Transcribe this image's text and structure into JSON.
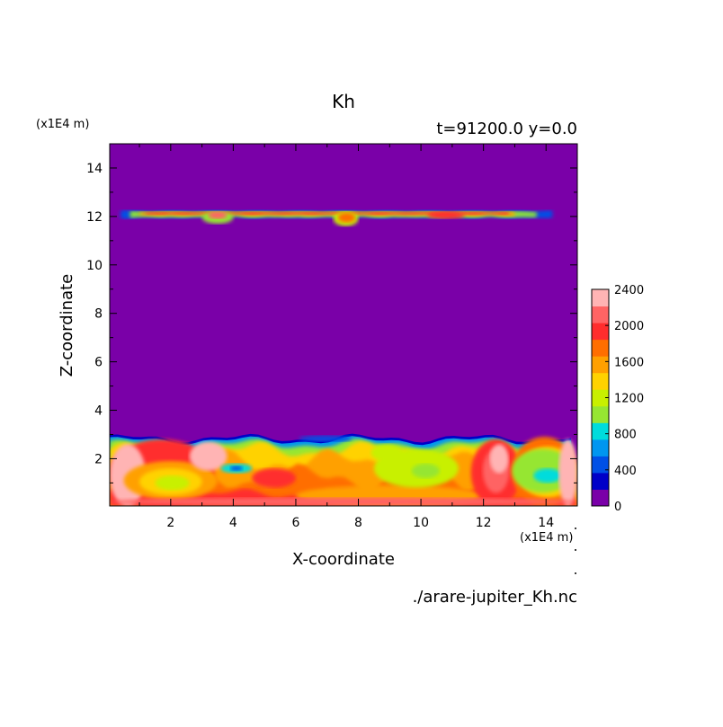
{
  "chart_data": {
    "type": "heatmap",
    "title": "Kh",
    "subtitle": "t=91200.0 y=0.0",
    "xlabel": "X-coordinate",
    "ylabel": "Z-coordinate",
    "x_unit": "(x1E4 m)",
    "y_unit": "(x1E4 m)",
    "source_label": "./arare-jupiter_Kh.nc",
    "xlim": [
      0.05,
      15
    ],
    "ylim": [
      0.05,
      15
    ],
    "x_ticks": [
      "2",
      "4",
      "6",
      "8",
      "10",
      "12",
      "14"
    ],
    "y_ticks": [
      "2",
      "4",
      "6",
      "8",
      "10",
      "12",
      "14"
    ],
    "background_level": 0,
    "colorbar": {
      "levels": [
        0,
        200,
        400,
        600,
        800,
        1000,
        1200,
        1400,
        1600,
        1800,
        2000,
        2200,
        2400
      ],
      "labels": [
        "0",
        "400",
        "800",
        "1200",
        "1600",
        "2000",
        "2400"
      ],
      "colors": [
        "#7a00a8",
        "#0000c8",
        "#0050e6",
        "#0096f0",
        "#00dcdc",
        "#96e632",
        "#c8f000",
        "#ffd200",
        "#ffa000",
        "#ff6e00",
        "#ff2d2d",
        "#ff6464",
        "#ffb4b4"
      ]
    },
    "features": [
      {
        "name": "upper-layer-band",
        "x": [
          0.4,
          14.2
        ],
        "z": [
          11.9,
          12.3
        ],
        "value": 1200
      },
      {
        "name": "upper-layer-core",
        "x": [
          0.8,
          13.5
        ],
        "z": [
          12.05,
          12.25
        ],
        "value": 2000
      },
      {
        "name": "upper-plume-7.6",
        "x": [
          7.2,
          8.0
        ],
        "z": [
          11.6,
          12.2
        ],
        "value": 1800
      },
      {
        "name": "upper-plume-3.5",
        "x": [
          3.0,
          4.0
        ],
        "z": [
          11.7,
          12.2
        ],
        "value": 1400
      },
      {
        "name": "boundary-layer",
        "x": [
          0.05,
          15
        ],
        "z": [
          0.05,
          2.9
        ],
        "value": 1400
      },
      {
        "name": "boundary-layer-top",
        "x": [
          0.05,
          15
        ],
        "z": [
          2.2,
          3.0
        ],
        "value": 800
      },
      {
        "name": "detached-blob",
        "x": [
          6.1,
          7.8
        ],
        "z": [
          2.7,
          2.95
        ],
        "value": 400
      },
      {
        "name": "eddy-low-left",
        "x": [
          0.5,
          3.5
        ],
        "z": [
          0.3,
          1.9
        ],
        "value": 1600
      },
      {
        "name": "eddy-left-core",
        "x": [
          1.5,
          2.6
        ],
        "z": [
          0.7,
          1.3
        ],
        "value": 1200
      },
      {
        "name": "eddy-x4",
        "x": [
          3.6,
          4.6
        ],
        "z": [
          1.4,
          1.8
        ],
        "value": 800
      },
      {
        "name": "eddy-x10",
        "x": [
          8.5,
          11.2
        ],
        "z": [
          0.8,
          2.4
        ],
        "value": 1200
      },
      {
        "name": "eddy-x14",
        "x": [
          12.8,
          15.0
        ],
        "z": [
          0.5,
          2.5
        ],
        "value": 800
      },
      {
        "name": "eddy-x14-core",
        "x": [
          13.6,
          14.5
        ],
        "z": [
          1.0,
          1.6
        ],
        "value": 1200
      },
      {
        "name": "hot-filament-x12",
        "x": [
          11.8,
          13.0
        ],
        "z": [
          0.2,
          2.8
        ],
        "value": 2200
      },
      {
        "name": "surface-hot-band",
        "x": [
          0.05,
          15
        ],
        "z": [
          0.05,
          0.4
        ],
        "value": 2200
      }
    ]
  }
}
